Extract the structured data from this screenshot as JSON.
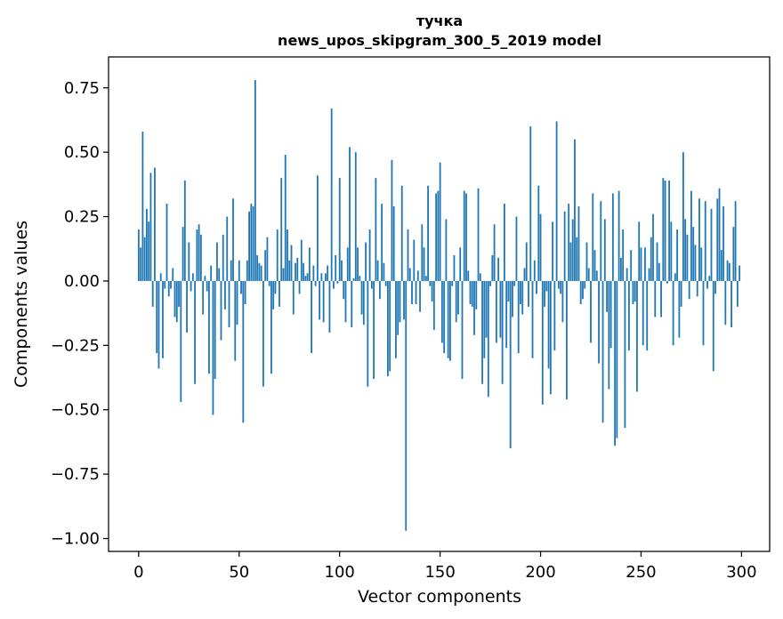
{
  "chart_data": {
    "type": "bar",
    "title": "тучка",
    "subtitle": "news_upos_skipgram_300_5_2019 model",
    "xlabel": "Vector components",
    "ylabel": "Components values",
    "xlim": [
      -15,
      314
    ],
    "ylim": [
      -1.05,
      0.87
    ],
    "xticks": [
      0,
      50,
      100,
      150,
      200,
      250,
      300
    ],
    "xtick_labels": [
      "0",
      "50",
      "100",
      "150",
      "200",
      "250",
      "300"
    ],
    "yticks": [
      0.75,
      0.5,
      0.25,
      0.0,
      -0.25,
      -0.5,
      -0.75,
      -1.0
    ],
    "ytick_labels": [
      "0.75",
      "0.50",
      "0.25",
      "0.00",
      "−0.25",
      "−0.50",
      "−0.75",
      "−1.00"
    ],
    "grid": false,
    "bar_color": "#1f77b4",
    "x": "0..299 (component index)",
    "values": [
      0.2,
      0.13,
      0.58,
      0.17,
      0.28,
      0.23,
      0.42,
      -0.1,
      0.44,
      -0.28,
      -0.34,
      0.03,
      -0.3,
      -0.03,
      0.3,
      -0.06,
      -0.03,
      0.05,
      -0.14,
      -0.16,
      -0.1,
      -0.47,
      0.21,
      0.39,
      -0.2,
      0.15,
      -0.04,
      0.03,
      -0.4,
      0.2,
      0.22,
      0.18,
      -0.13,
      0.02,
      -0.04,
      -0.36,
      0.06,
      -0.52,
      -0.38,
      0.15,
      0.05,
      -0.23,
      0.18,
      -0.11,
      0.25,
      -0.18,
      0.08,
      0.32,
      -0.31,
      -0.17,
      0.08,
      -0.05,
      -0.55,
      -0.09,
      0.08,
      0.27,
      0.3,
      0.29,
      0.78,
      0.1,
      0.07,
      0.06,
      -0.41,
      0.12,
      0.17,
      -0.02,
      -0.36,
      -0.11,
      -0.05,
      0.2,
      -0.1,
      0.4,
      0.05,
      0.49,
      0.2,
      0.08,
      0.14,
      -0.13,
      0.07,
      0.09,
      -0.05,
      0.16,
      0.07,
      0.02,
      0.03,
      0.13,
      -0.28,
      0.06,
      -0.02,
      0.41,
      -0.15,
      0.03,
      -0.16,
      0.03,
      0.06,
      -0.2,
      0.67,
      -0.03,
      0.1,
      -0.01,
      0.4,
      0.08,
      -0.07,
      -0.16,
      0.13,
      0.52,
      -0.18,
      0.01,
      0.5,
      0.13,
      0.02,
      -0.13,
      -0.17,
      0.15,
      -0.41,
      0.2,
      -0.03,
      -0.38,
      0.4,
      0.08,
      -0.07,
      0.3,
      0.07,
      -0.02,
      -0.37,
      -0.35,
      0.47,
      0.29,
      -0.3,
      -0.21,
      -0.16,
      0.37,
      -0.15,
      -0.97,
      0.2,
      0.05,
      -0.09,
      0.16,
      -0.09,
      0.04,
      -0.12,
      0.22,
      0.13,
      0.02,
      0.37,
      -0.02,
      -0.08,
      -0.19,
      0.34,
      0.35,
      0.46,
      -0.24,
      -0.28,
      0.24,
      -0.3,
      -0.31,
      -0.02,
      0.1,
      -0.16,
      -0.13,
      0.13,
      -0.38,
      0.35,
      0.34,
      0.04,
      -0.09,
      -0.1,
      -0.21,
      -0.11,
      0.36,
      0.03,
      -0.4,
      -0.3,
      -0.22,
      -0.45,
      -0.02,
      0.1,
      0.22,
      -0.24,
      0.09,
      -0.22,
      -0.4,
      0.3,
      -0.26,
      -0.08,
      -0.65,
      -0.14,
      -0.02,
      0.25,
      -0.28,
      -0.09,
      -0.13,
      0.05,
      0.15,
      -0.1,
      0.6,
      -0.3,
      0.08,
      -0.05,
      0.37,
      0.26,
      -0.48,
      -0.1,
      -0.04,
      -0.34,
      -0.44,
      0.23,
      -0.27,
      0.62,
      -0.03,
      -0.05,
      -0.16,
      0.27,
      -0.46,
      0.3,
      0.15,
      0.24,
      0.55,
      0.17,
      0.29,
      -0.09,
      -0.07,
      -0.03,
      0.15,
      0.05,
      -0.24,
      0.34,
      0.12,
      0.04,
      -0.32,
      0.31,
      -0.55,
      0.24,
      -0.12,
      -0.42,
      -0.26,
      0.34,
      -0.64,
      -0.61,
      0.35,
      0.09,
      0.2,
      -0.57,
      0.05,
      -0.27,
      0.12,
      -0.09,
      -0.08,
      -0.43,
      0.23,
      0.13,
      -0.25,
      0.13,
      -0.27,
      0.05,
      0.17,
      0.26,
      -0.14,
      0.15,
      0.07,
      -0.14,
      0.4,
      0.39,
      -0.01,
      0.39,
      0.23,
      -0.25,
      0.03,
      0.2,
      -0.22,
      -0.1,
      0.5,
      0.24,
      0.18,
      -0.07,
      0.35,
      0.21,
      0.14,
      -0.06,
      0.32,
      0.13,
      -0.25,
      0.31,
      -0.03,
      0.02,
      0.28,
      -0.35,
      -0.05,
      0.32,
      0.36,
      0.12,
      0.29,
      -0.17,
      0.08,
      0.07,
      -0.18,
      0.21,
      0.31,
      -0.1,
      0.06
    ]
  }
}
